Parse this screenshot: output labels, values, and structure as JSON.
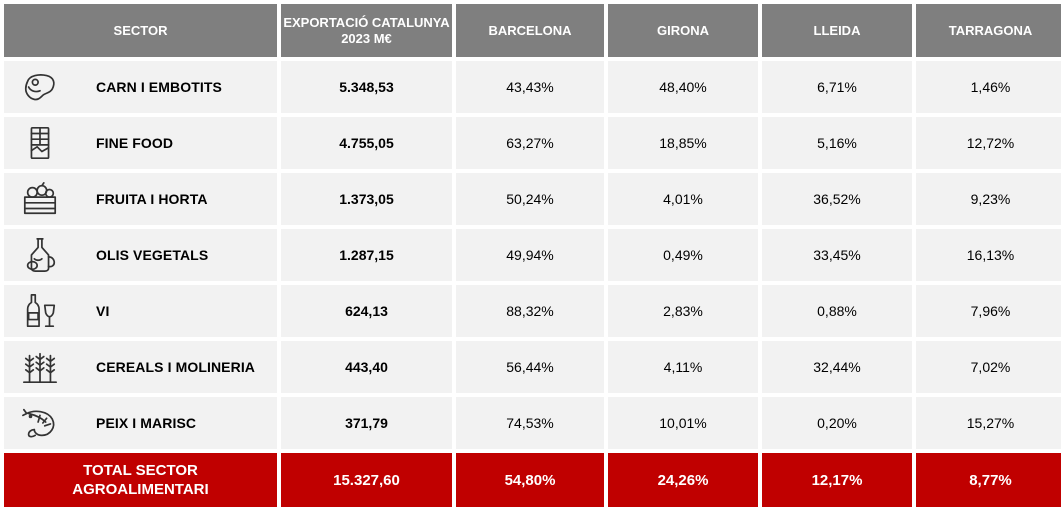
{
  "header": {
    "sector": "SECTOR",
    "export_line1": "EXPORTACIÓ CATALUNYA",
    "export_line2": "2023 M€",
    "barcelona": "BARCELONA",
    "girona": "GIRONA",
    "lleida": "LLEIDA",
    "tarragona": "TARRAGONA"
  },
  "rows": [
    {
      "icon": "steak-icon",
      "sector": "CARN I EMBOTITS",
      "export": "5.348,53",
      "barcelona": "43,43%",
      "girona": "48,40%",
      "lleida": "6,71%",
      "tarragona": "1,46%"
    },
    {
      "icon": "chocolate-bar-icon",
      "sector": "FINE FOOD",
      "export": "4.755,05",
      "barcelona": "63,27%",
      "girona": "18,85%",
      "lleida": "5,16%",
      "tarragona": "12,72%"
    },
    {
      "icon": "produce-crate-icon",
      "sector": "FRUITA I HORTA",
      "export": "1.373,05",
      "barcelona": "50,24%",
      "girona": "4,01%",
      "lleida": "36,52%",
      "tarragona": "9,23%"
    },
    {
      "icon": "oil-bottle-icon",
      "sector": "OLIS VEGETALS",
      "export": "1.287,15",
      "barcelona": "49,94%",
      "girona": "0,49%",
      "lleida": "33,45%",
      "tarragona": "16,13%"
    },
    {
      "icon": "wine-bottle-glass-icon",
      "sector": "VI",
      "export": "624,13",
      "barcelona": "88,32%",
      "girona": "2,83%",
      "lleida": "0,88%",
      "tarragona": "7,96%"
    },
    {
      "icon": "wheat-icon",
      "sector": "CEREALS I MOLINERIA",
      "export": "443,40",
      "barcelona": "56,44%",
      "girona": "4,11%",
      "lleida": "32,44%",
      "tarragona": "7,02%"
    },
    {
      "icon": "shrimp-icon",
      "sector": "PEIX I MARISC",
      "export": "371,79",
      "barcelona": "74,53%",
      "girona": "10,01%",
      "lleida": "0,20%",
      "tarragona": "15,27%"
    }
  ],
  "total": {
    "label_line1": "TOTAL SECTOR",
    "label_line2": "AGROALIMENTARI",
    "export": "15.327,60",
    "barcelona": "54,80%",
    "girona": "24,26%",
    "lleida": "12,17%",
    "tarragona": "8,77%"
  },
  "colors": {
    "header_bg": "#7f7f7f",
    "row_bg": "#f2f2f2",
    "total_bg": "#c00000"
  }
}
